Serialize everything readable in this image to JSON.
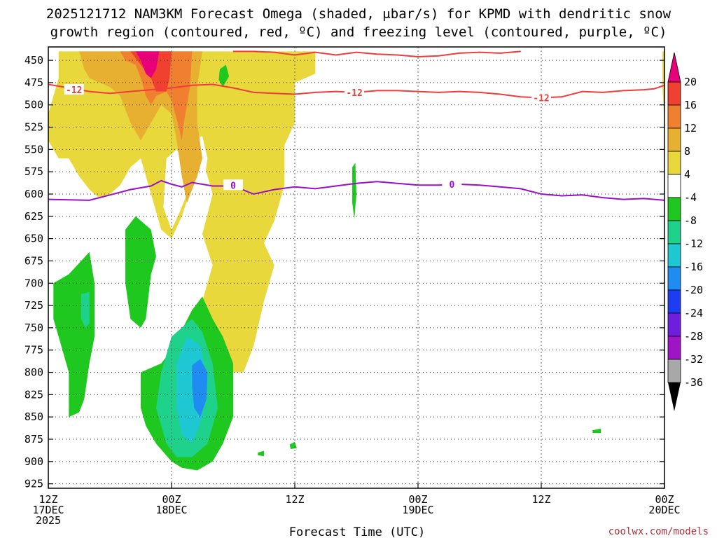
{
  "chart_data": {
    "type": "heatmap",
    "title_line1": "2025121712 NAM3KM Forecast Omega (shaded, μbar/s) for KPMD with dendritic snow",
    "title_line2": "growth region (contoured, red, ºC) and freezing level (contoured, purple, ºC)",
    "xlabel": "Forecast Time (UTC)",
    "credit": "coolwx.com/models",
    "x_hours_range": [
      0,
      60
    ],
    "y_pressure_range": [
      930,
      435
    ],
    "y_ticks": [
      450,
      475,
      500,
      525,
      550,
      575,
      600,
      625,
      650,
      675,
      700,
      725,
      750,
      775,
      800,
      825,
      850,
      875,
      900,
      925
    ],
    "x_ticks": [
      {
        "h": 0,
        "l1": "12Z",
        "l2": "17DEC",
        "l3": "2025"
      },
      {
        "h": 12,
        "l1": "00Z",
        "l2": "18DEC",
        "l3": ""
      },
      {
        "h": 24,
        "l1": "12Z",
        "l2": "",
        "l3": ""
      },
      {
        "h": 36,
        "l1": "00Z",
        "l2": "19DEC",
        "l3": ""
      },
      {
        "h": 48,
        "l1": "12Z",
        "l2": "",
        "l3": ""
      },
      {
        "h": 60,
        "l1": "00Z",
        "l2": "20DEC",
        "l3": ""
      }
    ],
    "colorbar": [
      {
        "label": "20",
        "color": "#e8007a"
      },
      {
        "label": "16",
        "color": "#f04030"
      },
      {
        "label": "12",
        "color": "#f08030"
      },
      {
        "label": "8",
        "color": "#e8b030"
      },
      {
        "label": "4",
        "color": "#e8d83c"
      },
      {
        "label": "-4",
        "color": "#ffffff"
      },
      {
        "label": "-8",
        "color": "#1ec81e"
      },
      {
        "label": "-12",
        "color": "#1ed28c"
      },
      {
        "label": "-16",
        "color": "#1ec8d2"
      },
      {
        "label": "-20",
        "color": "#1e8cf0"
      },
      {
        "label": "-24",
        "color": "#1e3cf0"
      },
      {
        "label": "-28",
        "color": "#6e1edc"
      },
      {
        "label": "-32",
        "color": "#a014c8"
      },
      {
        "label": "-36",
        "color": "#a8a8a8"
      }
    ],
    "colorbar_top_color": "#e8007a",
    "colorbar_bottom_color": "#000000",
    "contour_labels": {
      "dgz": "-12",
      "freezing": "0"
    },
    "dgz_line_color": "#f03c3c",
    "freezing_line_color": "#9a10c8",
    "ground_color": "#a0522d",
    "freezing_level": [
      [
        0,
        606
      ],
      [
        4,
        607
      ],
      [
        6,
        601
      ],
      [
        8,
        595
      ],
      [
        10,
        591
      ],
      [
        11,
        585
      ],
      [
        12,
        589
      ],
      [
        13,
        592
      ],
      [
        14,
        587
      ],
      [
        16,
        591
      ],
      [
        18,
        591
      ],
      [
        20,
        600
      ],
      [
        22,
        595
      ],
      [
        24,
        592
      ],
      [
        26,
        594
      ],
      [
        28,
        591
      ],
      [
        30,
        588
      ],
      [
        32,
        586
      ],
      [
        34,
        588
      ],
      [
        36,
        590
      ],
      [
        38,
        590
      ],
      [
        40,
        589
      ],
      [
        42,
        590
      ],
      [
        44,
        592
      ],
      [
        46,
        594
      ],
      [
        48,
        600
      ],
      [
        50,
        602
      ],
      [
        52,
        601
      ],
      [
        54,
        604
      ],
      [
        56,
        606
      ],
      [
        58,
        605
      ],
      [
        60,
        607
      ]
    ],
    "dgz_lower": [
      [
        0,
        477
      ],
      [
        2,
        481
      ],
      [
        4,
        485
      ],
      [
        6,
        487
      ],
      [
        8,
        485
      ],
      [
        10,
        483
      ],
      [
        12,
        481
      ],
      [
        14,
        478
      ],
      [
        16,
        477
      ],
      [
        18,
        481
      ],
      [
        20,
        486
      ],
      [
        22,
        487
      ],
      [
        24,
        488
      ],
      [
        26,
        486
      ],
      [
        28,
        485
      ],
      [
        30,
        486
      ],
      [
        32,
        484
      ],
      [
        34,
        484
      ],
      [
        36,
        485
      ],
      [
        38,
        486
      ],
      [
        40,
        485
      ],
      [
        42,
        486
      ],
      [
        44,
        488
      ],
      [
        46,
        491
      ],
      [
        48,
        492
      ],
      [
        50,
        491
      ],
      [
        52,
        485
      ],
      [
        54,
        486
      ],
      [
        56,
        484
      ],
      [
        58,
        483
      ],
      [
        59,
        482
      ],
      [
        60,
        478
      ]
    ],
    "dgz_upper": [
      [
        18,
        440
      ],
      [
        20,
        440
      ],
      [
        22,
        441
      ],
      [
        24,
        444
      ],
      [
        26,
        441
      ],
      [
        28,
        444
      ],
      [
        30,
        441
      ],
      [
        32,
        443
      ],
      [
        34,
        444
      ],
      [
        36,
        446
      ],
      [
        38,
        445
      ],
      [
        40,
        442
      ],
      [
        42,
        441
      ],
      [
        44,
        442
      ],
      [
        46,
        440
      ]
    ],
    "shading": [
      {
        "name": "yellow",
        "color": "#e8d83c",
        "pts": [
          [
            0,
            540
          ],
          [
            0,
            510
          ],
          [
            1,
            470
          ],
          [
            1,
            440
          ],
          [
            26,
            440
          ],
          [
            26,
            465
          ],
          [
            24,
            475
          ],
          [
            24,
            510
          ],
          [
            24,
            520
          ],
          [
            23,
            545
          ],
          [
            23,
            590
          ],
          [
            22,
            630
          ],
          [
            21,
            655
          ],
          [
            22,
            680
          ],
          [
            21,
            720
          ],
          [
            20,
            770
          ],
          [
            19,
            800
          ],
          [
            17,
            800
          ],
          [
            16,
            760
          ],
          [
            15,
            720
          ],
          [
            16,
            680
          ],
          [
            15,
            645
          ],
          [
            16,
            600
          ],
          [
            15,
            560
          ],
          [
            14,
            590
          ],
          [
            13,
            625
          ],
          [
            12,
            650
          ],
          [
            11,
            640
          ],
          [
            10,
            600
          ],
          [
            9,
            560
          ],
          [
            8,
            570
          ],
          [
            7,
            590
          ],
          [
            6,
            600
          ],
          [
            5,
            605
          ],
          [
            4,
            595
          ],
          [
            3,
            580
          ],
          [
            2,
            560
          ],
          [
            1,
            560
          ]
        ]
      },
      {
        "name": "white-gap1",
        "color": "#ffffff",
        "pts": [
          [
            11.5,
            560
          ],
          [
            12.5,
            550
          ],
          [
            13,
            560
          ],
          [
            13.5,
            600
          ],
          [
            12.8,
            620
          ],
          [
            12,
            640
          ],
          [
            11.2,
            615
          ]
        ]
      },
      {
        "name": "white-gap2",
        "color": "#ffffff",
        "pts": [
          [
            13.8,
            540
          ],
          [
            15,
            535
          ],
          [
            15.5,
            560
          ],
          [
            15,
            600
          ],
          [
            14.5,
            640
          ],
          [
            14,
            650
          ],
          [
            13.6,
            620
          ]
        ]
      },
      {
        "name": "orange-light",
        "color": "#e8b030",
        "pts": [
          [
            3,
            440
          ],
          [
            15,
            440
          ],
          [
            14.5,
            480
          ],
          [
            14.5,
            520
          ],
          [
            15,
            560
          ],
          [
            14.5,
            580
          ],
          [
            13.5,
            610
          ],
          [
            13,
            580
          ],
          [
            12.5,
            540
          ],
          [
            12,
            510
          ],
          [
            11,
            500
          ],
          [
            10,
            520
          ],
          [
            9,
            540
          ],
          [
            8,
            520
          ],
          [
            7,
            490
          ],
          [
            6,
            480
          ],
          [
            5,
            475
          ],
          [
            4,
            470
          ],
          [
            3.5,
            460
          ]
        ]
      },
      {
        "name": "orange",
        "color": "#f08030",
        "pts": [
          [
            7,
            440
          ],
          [
            14,
            440
          ],
          [
            13.8,
            480
          ],
          [
            13.2,
            520
          ],
          [
            13,
            540
          ],
          [
            12.6,
            520
          ],
          [
            12,
            495
          ],
          [
            11.5,
            485
          ],
          [
            10.5,
            490
          ],
          [
            10,
            500
          ],
          [
            9.5,
            490
          ],
          [
            9,
            470
          ],
          [
            8.5,
            455
          ],
          [
            7.5,
            450
          ]
        ]
      },
      {
        "name": "red",
        "color": "#f04030",
        "pts": [
          [
            8,
            440
          ],
          [
            12,
            440
          ],
          [
            11.8,
            470
          ],
          [
            11.5,
            485
          ],
          [
            10.5,
            485
          ],
          [
            10,
            470
          ],
          [
            9,
            455
          ]
        ]
      },
      {
        "name": "magenta",
        "color": "#e8007a",
        "pts": [
          [
            8.5,
            440
          ],
          [
            10.8,
            440
          ],
          [
            10.5,
            460
          ],
          [
            10,
            470
          ],
          [
            9.5,
            465
          ],
          [
            9,
            450
          ]
        ]
      },
      {
        "name": "green1",
        "color": "#1ec81e",
        "pts": [
          [
            0.5,
            700
          ],
          [
            2,
            690
          ],
          [
            4,
            665
          ],
          [
            4.5,
            700
          ],
          [
            4.5,
            760
          ],
          [
            4,
            790
          ],
          [
            3.5,
            830
          ],
          [
            3,
            845
          ],
          [
            2,
            850
          ],
          [
            2,
            800
          ],
          [
            1,
            760
          ],
          [
            0.5,
            740
          ]
        ]
      },
      {
        "name": "green2",
        "color": "#1ec81e",
        "pts": [
          [
            7.5,
            640
          ],
          [
            8.5,
            625
          ],
          [
            10,
            640
          ],
          [
            10.5,
            670
          ],
          [
            10,
            690
          ],
          [
            9.5,
            740
          ],
          [
            9,
            750
          ],
          [
            8,
            740
          ],
          [
            7.5,
            700
          ]
        ]
      },
      {
        "name": "green3",
        "color": "#1ec81e",
        "pts": [
          [
            9,
            800
          ],
          [
            11,
            790
          ],
          [
            12,
            775
          ],
          [
            14,
            730
          ],
          [
            15,
            715
          ],
          [
            16,
            740
          ],
          [
            17,
            760
          ],
          [
            18,
            790
          ],
          [
            18,
            850
          ],
          [
            17,
            880
          ],
          [
            16,
            900
          ],
          [
            14.5,
            910
          ],
          [
            13,
            907
          ],
          [
            12,
            900
          ],
          [
            10.5,
            880
          ],
          [
            9.5,
            860
          ],
          [
            9,
            840
          ]
        ]
      },
      {
        "name": "green-blob1",
        "color": "#1ec81e",
        "pts": [
          [
            16.7,
            460
          ],
          [
            17.3,
            455
          ],
          [
            17.6,
            468
          ],
          [
            17,
            480
          ],
          [
            16.6,
            472
          ]
        ]
      },
      {
        "name": "green-thin",
        "color": "#1ec81e",
        "pts": [
          [
            29.6,
            570
          ],
          [
            29.9,
            565
          ],
          [
            30,
            600
          ],
          [
            29.8,
            628
          ],
          [
            29.6,
            610
          ]
        ]
      },
      {
        "name": "green-dot1",
        "color": "#1ec81e",
        "pts": [
          [
            20.4,
            890
          ],
          [
            21,
            888
          ],
          [
            21,
            894
          ],
          [
            20.4,
            893
          ]
        ]
      },
      {
        "name": "green-dot2",
        "color": "#1ec81e",
        "pts": [
          [
            23.5,
            881
          ],
          [
            24,
            878
          ],
          [
            24.2,
            885
          ],
          [
            23.6,
            886
          ]
        ]
      },
      {
        "name": "green-dot3",
        "color": "#1ec81e",
        "pts": [
          [
            53,
            865
          ],
          [
            53.8,
            863
          ],
          [
            53.8,
            868
          ],
          [
            53,
            868
          ]
        ]
      },
      {
        "name": "teal1",
        "color": "#1ed28c",
        "pts": [
          [
            10.5,
            840
          ],
          [
            11,
            800
          ],
          [
            12,
            760
          ],
          [
            14,
            740
          ],
          [
            15,
            755
          ],
          [
            16,
            790
          ],
          [
            16.5,
            840
          ],
          [
            15.5,
            880
          ],
          [
            14,
            895
          ],
          [
            12.5,
            895
          ],
          [
            11.5,
            880
          ]
        ]
      },
      {
        "name": "teal2",
        "color": "#1ed28c",
        "pts": [
          [
            3.2,
            712
          ],
          [
            4,
            710
          ],
          [
            4,
            745
          ],
          [
            3.6,
            750
          ],
          [
            3.2,
            740
          ]
        ]
      },
      {
        "name": "cyan",
        "color": "#1ec8d2",
        "pts": [
          [
            12.5,
            790
          ],
          [
            13.5,
            760
          ],
          [
            14.8,
            770
          ],
          [
            15.5,
            810
          ],
          [
            15,
            850
          ],
          [
            14,
            880
          ],
          [
            13,
            870
          ],
          [
            12.5,
            840
          ]
        ]
      },
      {
        "name": "blue",
        "color": "#1e8cf0",
        "pts": [
          [
            14,
            792
          ],
          [
            14.8,
            785
          ],
          [
            15.5,
            800
          ],
          [
            15.4,
            830
          ],
          [
            14.8,
            850
          ],
          [
            14.2,
            840
          ],
          [
            14,
            815
          ]
        ]
      },
      {
        "name": "yellow-right-edge",
        "color": "#e8d83c",
        "pts": [
          [
            59.8,
            440
          ],
          [
            60,
            440
          ],
          [
            60,
            520
          ],
          [
            59.8,
            480
          ]
        ]
      }
    ]
  }
}
